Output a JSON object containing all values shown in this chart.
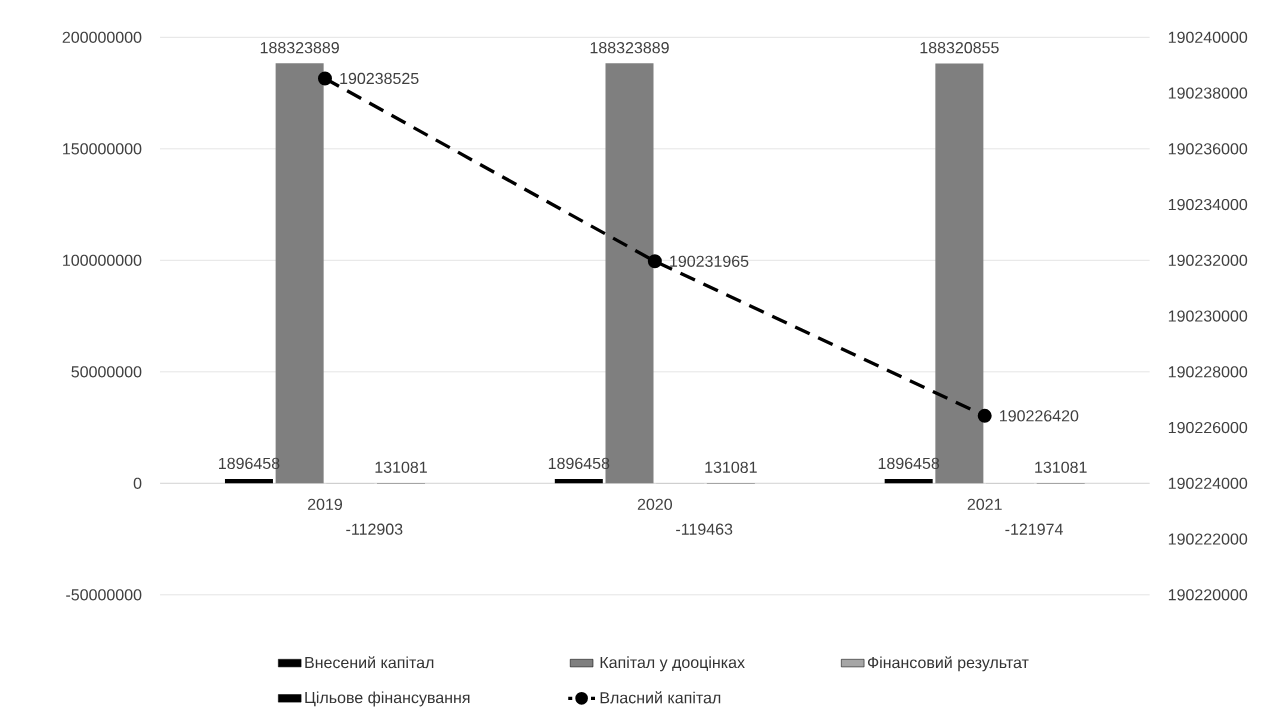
{
  "chart_data": {
    "type": "bar",
    "categories": [
      "2019",
      "2020",
      "2021"
    ],
    "series": [
      {
        "name": "Внесений капітал",
        "color": "#000000",
        "values": [
          1896458,
          1896458,
          1896458
        ]
      },
      {
        "name": "Капітал у дооцінках",
        "color": "#7f7f7f",
        "values": [
          188323889,
          188323889,
          188320855
        ]
      },
      {
        "name": "Фінансовий результат",
        "color": "#a6a6a6",
        "values": [
          -112903,
          -119463,
          -121974
        ]
      },
      {
        "name": "Цільове фінансування",
        "color": "#000000",
        "values": [
          131081,
          131081,
          131081
        ]
      },
      {
        "name": "Власний капітал",
        "type": "line",
        "axis": "y2",
        "color": "#000000",
        "marker": "circle",
        "line_style": "dashed",
        "values": [
          190238525,
          190231965,
          190226420
        ]
      }
    ],
    "ylim": [
      -50000000,
      200000000
    ],
    "yticks": [
      -50000000,
      0,
      50000000,
      100000000,
      150000000,
      200000000
    ],
    "y2lim": [
      190220000,
      190240000
    ],
    "y2ticks": [
      190220000,
      190222000,
      190224000,
      190226000,
      190228000,
      190230000,
      190232000,
      190234000,
      190236000,
      190238000,
      190240000
    ],
    "grid": "y",
    "legend": "bottom",
    "data_labels": true
  }
}
